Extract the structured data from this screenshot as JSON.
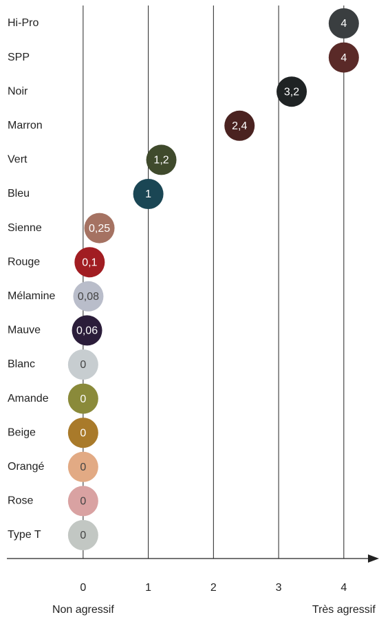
{
  "chart_data": {
    "type": "dot",
    "categories": [
      "Hi-Pro",
      "SPP",
      "Noir",
      "Marron",
      "Vert",
      "Bleu",
      "Sienne",
      "Rouge",
      "Mélamine",
      "Mauve",
      "Blanc",
      "Amande",
      "Beige",
      "Orangé",
      "Rose",
      "Type T"
    ],
    "values": [
      4,
      4,
      3.2,
      2.4,
      1.2,
      1,
      0.25,
      0.1,
      0.08,
      0.06,
      0,
      0,
      0,
      0,
      0,
      0
    ],
    "value_labels": [
      "4",
      "4",
      "3,2",
      "2,4",
      "1,2",
      "1",
      "0,25",
      "0,1",
      "0,08",
      "0,06",
      "0",
      "0",
      "0",
      "0",
      "0",
      "0"
    ],
    "colors": [
      "#3a3e40",
      "#5a2a28",
      "#1f2324",
      "#4a2220",
      "#3f4a2c",
      "#1a4654",
      "#a57262",
      "#a11d22",
      "#b9bdca",
      "#2b1d3a",
      "#c7cdd0",
      "#8a8a3a",
      "#a97a2a",
      "#e2aa84",
      "#d9a2a2",
      "#c2c7c3"
    ],
    "xlim": [
      -1.17,
      4.54
    ],
    "xticks": [
      0,
      1,
      2,
      3,
      4
    ],
    "grid": true,
    "annotations": [
      {
        "text": "Non agressif",
        "x": 0
      },
      {
        "text": "Très agressif",
        "x": 4
      }
    ]
  }
}
